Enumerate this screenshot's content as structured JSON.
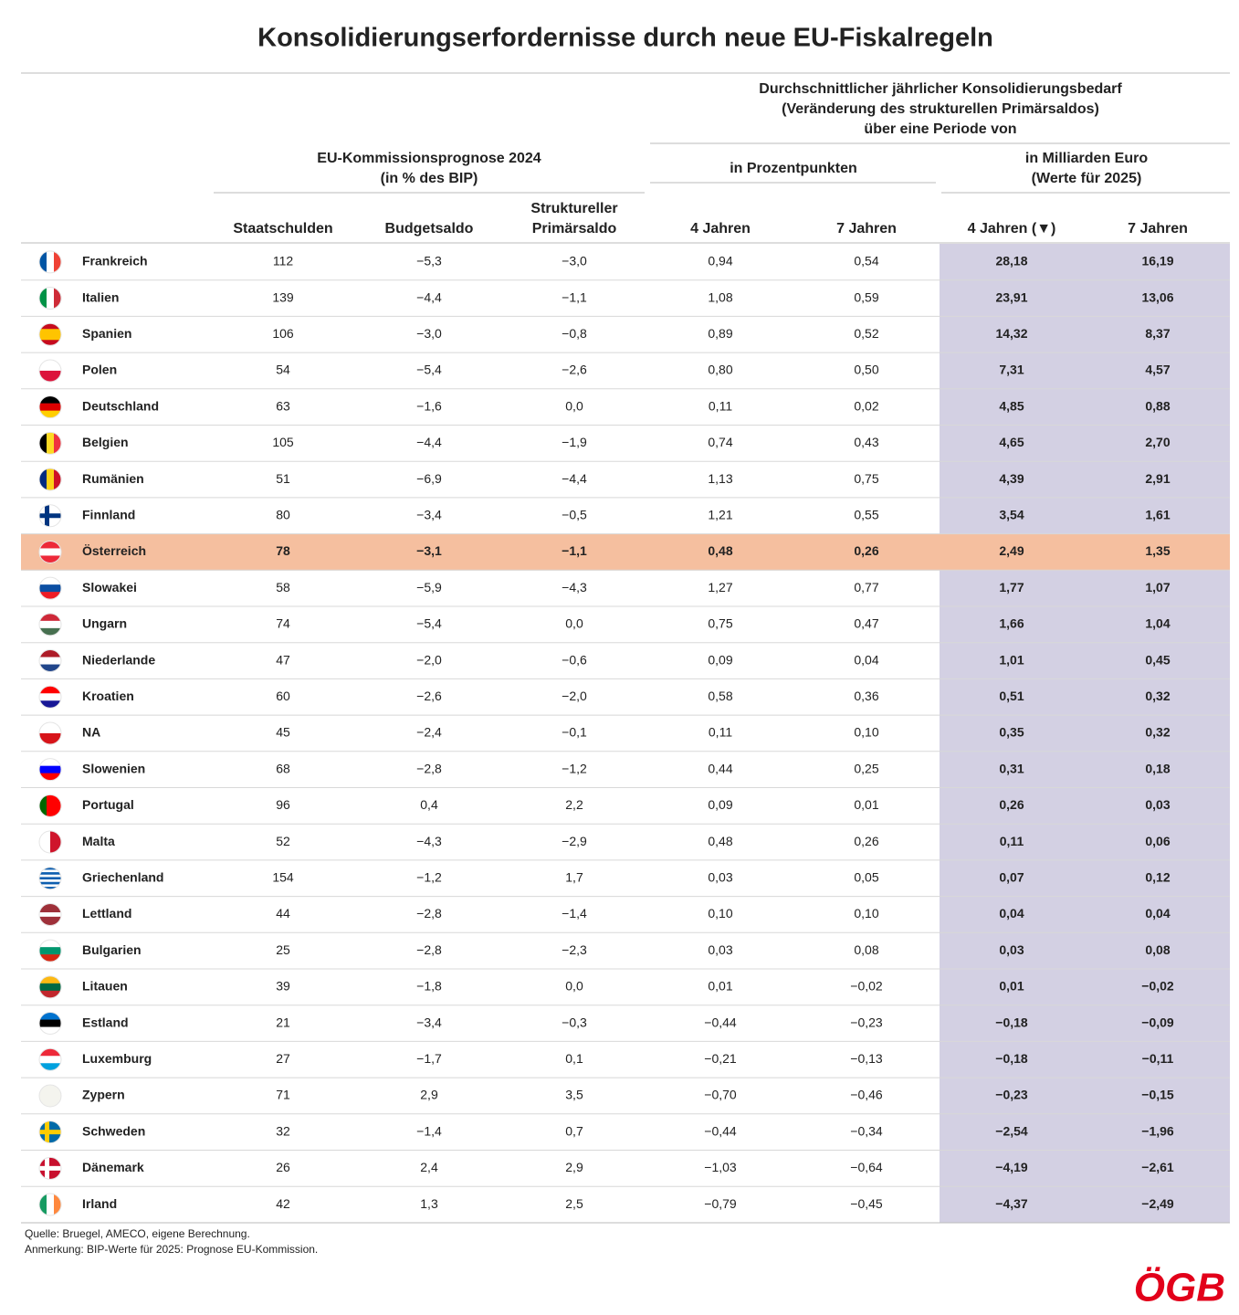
{
  "title": "Konsolidierungserfordernisse durch neue EU-Fiskalregeln",
  "header": {
    "group_right": [
      "Durchschnittlicher jährlicher Konsolidierungsbedarf",
      "(Veränderung des strukturellen Primärsaldos)",
      "über eine Periode von"
    ],
    "group_left": [
      "EU-Kommissionsprognose 2024",
      "(in % des BIP)"
    ],
    "sub_pp": "in Prozentpunkten",
    "sub_eur": [
      "in Milliarden Euro",
      "(Werte für 2025)"
    ],
    "columns": [
      [
        "Staatschulden"
      ],
      [
        "Budgetsaldo"
      ],
      [
        "Struktureller",
        "Primärsaldo"
      ],
      [
        "4 Jahren"
      ],
      [
        "7 Jahren"
      ],
      [
        "4 Jahren (▼)"
      ],
      [
        "7 Jahren"
      ]
    ]
  },
  "table": {
    "rows": [
      [
        "Frankreich",
        "112",
        "−5,3",
        "−3,0",
        "0,94",
        "0,54",
        "28,18",
        "16,19"
      ],
      [
        "Italien",
        "139",
        "−4,4",
        "−1,1",
        "1,08",
        "0,59",
        "23,91",
        "13,06"
      ],
      [
        "Spanien",
        "106",
        "−3,0",
        "−0,8",
        "0,89",
        "0,52",
        "14,32",
        "8,37"
      ],
      [
        "Polen",
        "54",
        "−5,4",
        "−2,6",
        "0,80",
        "0,50",
        "7,31",
        "4,57"
      ],
      [
        "Deutschland",
        "63",
        "−1,6",
        "0,0",
        "0,11",
        "0,02",
        "4,85",
        "0,88"
      ],
      [
        "Belgien",
        "105",
        "−4,4",
        "−1,9",
        "0,74",
        "0,43",
        "4,65",
        "2,70"
      ],
      [
        "Rumänien",
        "51",
        "−6,9",
        "−4,4",
        "1,13",
        "0,75",
        "4,39",
        "2,91"
      ],
      [
        "Finnland",
        "80",
        "−3,4",
        "−0,5",
        "1,21",
        "0,55",
        "3,54",
        "1,61"
      ],
      [
        "Österreich",
        "78",
        "−3,1",
        "−1,1",
        "0,48",
        "0,26",
        "2,49",
        "1,35"
      ],
      [
        "Slowakei",
        "58",
        "−5,9",
        "−4,3",
        "1,27",
        "0,77",
        "1,77",
        "1,07"
      ],
      [
        "Ungarn",
        "74",
        "−5,4",
        "0,0",
        "0,75",
        "0,47",
        "1,66",
        "1,04"
      ],
      [
        "Niederlande",
        "47",
        "−2,0",
        "−0,6",
        "0,09",
        "0,04",
        "1,01",
        "0,45"
      ],
      [
        "Kroatien",
        "60",
        "−2,6",
        "−2,0",
        "0,58",
        "0,36",
        "0,51",
        "0,32"
      ],
      [
        "NA",
        "45",
        "−2,4",
        "−0,1",
        "0,11",
        "0,10",
        "0,35",
        "0,32"
      ],
      [
        "Slowenien",
        "68",
        "−2,8",
        "−1,2",
        "0,44",
        "0,25",
        "0,31",
        "0,18"
      ],
      [
        "Portugal",
        "96",
        "0,4",
        "2,2",
        "0,09",
        "0,01",
        "0,26",
        "0,03"
      ],
      [
        "Malta",
        "52",
        "−4,3",
        "−2,9",
        "0,48",
        "0,26",
        "0,11",
        "0,06"
      ],
      [
        "Griechenland",
        "154",
        "−1,2",
        "1,7",
        "0,03",
        "0,05",
        "0,07",
        "0,12"
      ],
      [
        "Lettland",
        "44",
        "−2,8",
        "−1,4",
        "0,10",
        "0,10",
        "0,04",
        "0,04"
      ],
      [
        "Bulgarien",
        "25",
        "−2,8",
        "−2,3",
        "0,03",
        "0,08",
        "0,03",
        "0,08"
      ],
      [
        "Litauen",
        "39",
        "−1,8",
        "0,0",
        "0,01",
        "−0,02",
        "0,01",
        "−0,02"
      ],
      [
        "Estland",
        "21",
        "−3,4",
        "−0,3",
        "−0,44",
        "−0,23",
        "−0,18",
        "−0,09"
      ],
      [
        "Luxemburg",
        "27",
        "−1,7",
        "0,1",
        "−0,21",
        "−0,13",
        "−0,18",
        "−0,11"
      ],
      [
        "Zypern",
        "71",
        "2,9",
        "3,5",
        "−0,70",
        "−0,46",
        "−0,23",
        "−0,15"
      ],
      [
        "Schweden",
        "32",
        "−1,4",
        "0,7",
        "−0,44",
        "−0,34",
        "−2,54",
        "−1,96"
      ],
      [
        "Dänemark",
        "26",
        "2,4",
        "2,9",
        "−1,03",
        "−0,64",
        "−4,19",
        "−2,61"
      ],
      [
        "Irland",
        "42",
        "1,3",
        "2,5",
        "−0,79",
        "−0,45",
        "−4,37",
        "−2,49"
      ]
    ]
  },
  "footer": [
    "Quelle: Bruegel, AMECO, eigene Berechnung.",
    "Anmerkung: BIP-Werte für 2025: Prognose EU-Kommission."
  ],
  "logo": "ÖGB"
}
